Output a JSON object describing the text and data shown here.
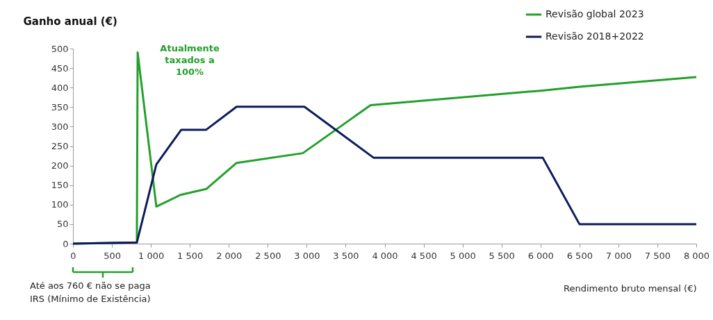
{
  "chart_data": {
    "type": "line",
    "ylabel": "Ganho anual (€)",
    "xlabel": "Rendimento bruto mensal (€)",
    "series": [
      {
        "name": "Revisão global 2023",
        "color": "#22a02a",
        "x": [
          0,
          820,
          830,
          1070,
          1380,
          1710,
          2100,
          2950,
          3820,
          6000,
          6500,
          8000
        ],
        "values": [
          0,
          3,
          490,
          95,
          125,
          140,
          207,
          232,
          355,
          392,
          402,
          427
        ]
      },
      {
        "name": "Revisão 2018+2022",
        "color": "#0d1b5c",
        "x": [
          0,
          820,
          1070,
          1390,
          1710,
          2100,
          2970,
          3860,
          6030,
          6500,
          8000
        ],
        "values": [
          0,
          3,
          203,
          292,
          292,
          351,
          351,
          220,
          220,
          50,
          50
        ]
      }
    ],
    "xlim": [
      0,
      8000
    ],
    "xticks": [
      0,
      500,
      {
        "value": 1000,
        "label": "1 000"
      },
      {
        "value": 1500,
        "label": "1 500"
      },
      {
        "value": 2000,
        "label": "2 000"
      },
      {
        "value": 2500,
        "label": "2 500"
      },
      {
        "value": 3000,
        "label": "3 000"
      },
      {
        "value": 3500,
        "label": "3 500"
      },
      {
        "value": 4000,
        "label": "4 000"
      },
      {
        "value": 4500,
        "label": "4 500"
      },
      {
        "value": 5000,
        "label": "5 000"
      },
      {
        "value": 5500,
        "label": "5 500"
      },
      {
        "value": 6000,
        "label": "6 000"
      },
      {
        "value": 6500,
        "label": "6 500"
      },
      {
        "value": 7000,
        "label": "7 000"
      },
      {
        "value": 7500,
        "label": "7 500"
      },
      {
        "value": 8000,
        "label": "8 000"
      }
    ],
    "ylim": [
      0,
      500
    ],
    "yticks": [
      0,
      50,
      100,
      150,
      200,
      250,
      300,
      350,
      400,
      450,
      500
    ],
    "grid": false,
    "legend": "top right",
    "marker": "none",
    "line_style": "solid",
    "annotations": [
      {
        "text": "Atualmente\ntaxados a\n100%",
        "x": 830,
        "y": 490
      },
      {
        "text": "Até aos 760 € não se paga\nIRS (Mínimo de Existência)"
      }
    ]
  }
}
